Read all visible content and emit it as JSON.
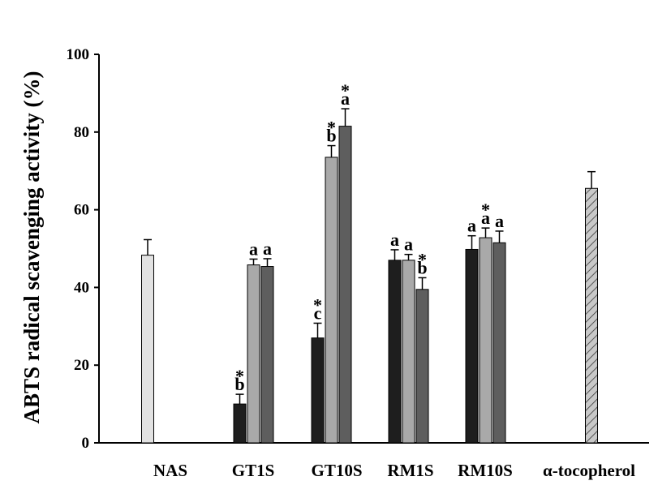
{
  "chart_data": {
    "type": "bar",
    "ylabel": "ABTS radical scavenging activity (%)",
    "xlabel": "",
    "ylim": [
      0,
      100
    ],
    "yticks": [
      "0",
      "20",
      "40",
      "60",
      "80",
      "100"
    ],
    "categories": [
      "NAS",
      "GT1S",
      "GT10S",
      "RM1S",
      "RM10S",
      "α-tocopherol"
    ],
    "series_colors": [
      "#1e1e1e",
      "#a9a9a9",
      "#5e5e5e"
    ],
    "control_colors": {
      "NAS": "#e2e2e2",
      "alpha_tocopherol": "#c8c8c8"
    },
    "bars": [
      {
        "category": "NAS",
        "kind": "control",
        "fill": "light-gray",
        "value": 48.3,
        "error": 4.0,
        "letter": "",
        "star": false
      },
      {
        "category": "GT1S",
        "kind": "series",
        "series": 0,
        "value": 10.0,
        "error": 2.5,
        "letter": "b",
        "star": true
      },
      {
        "category": "GT1S",
        "kind": "series",
        "series": 1,
        "value": 45.8,
        "error": 1.5,
        "letter": "a",
        "star": false
      },
      {
        "category": "GT1S",
        "kind": "series",
        "series": 2,
        "value": 45.4,
        "error": 2.0,
        "letter": "a",
        "star": false
      },
      {
        "category": "GT10S",
        "kind": "series",
        "series": 0,
        "value": 27.0,
        "error": 3.8,
        "letter": "c",
        "star": true
      },
      {
        "category": "GT10S",
        "kind": "series",
        "series": 1,
        "value": 73.5,
        "error": 3.0,
        "letter": "b",
        "star": true
      },
      {
        "category": "GT10S",
        "kind": "series",
        "series": 2,
        "value": 81.5,
        "error": 4.5,
        "letter": "a",
        "star": true
      },
      {
        "category": "RM1S",
        "kind": "series",
        "series": 0,
        "value": 47.0,
        "error": 2.7,
        "letter": "a",
        "star": false
      },
      {
        "category": "RM1S",
        "kind": "series",
        "series": 1,
        "value": 47.0,
        "error": 1.5,
        "letter": "a",
        "star": false
      },
      {
        "category": "RM1S",
        "kind": "series",
        "series": 2,
        "value": 39.5,
        "error": 3.0,
        "letter": "b",
        "star": true
      },
      {
        "category": "RM10S",
        "kind": "series",
        "series": 0,
        "value": 49.8,
        "error": 3.5,
        "letter": "a",
        "star": false
      },
      {
        "category": "RM10S",
        "kind": "series",
        "series": 1,
        "value": 52.8,
        "error": 2.5,
        "letter": "a",
        "star": true
      },
      {
        "category": "RM10S",
        "kind": "series",
        "series": 2,
        "value": 51.5,
        "error": 3.0,
        "letter": "a",
        "star": false
      },
      {
        "category": "α-tocopherol",
        "kind": "control",
        "fill": "hatched",
        "value": 65.5,
        "error": 4.3,
        "letter": "",
        "star": false
      }
    ],
    "grid": false,
    "legend": "none"
  }
}
